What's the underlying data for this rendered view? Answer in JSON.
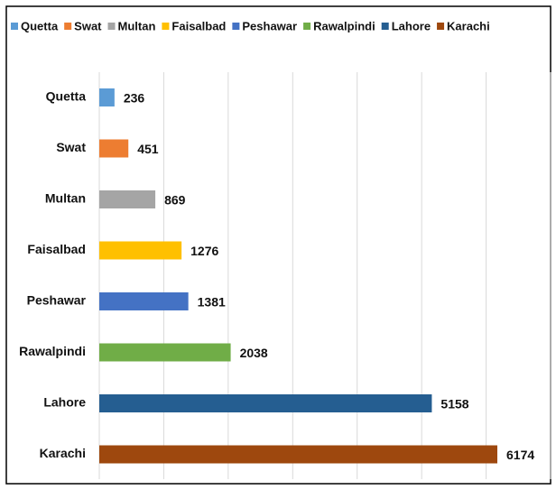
{
  "chart_data": {
    "type": "bar",
    "orientation": "horizontal",
    "categories": [
      "Quetta",
      "Swat",
      "Multan",
      "Faisalbad",
      "Peshawar",
      "Rawalpindi",
      "Lahore",
      "Karachi"
    ],
    "values": [
      236,
      451,
      869,
      1276,
      1381,
      2038,
      5158,
      6174
    ],
    "colors": [
      "#5B9BD5",
      "#ED7D31",
      "#A5A5A5",
      "#FFC000",
      "#4472C4",
      "#70AD47",
      "#255E91",
      "#9E480E"
    ],
    "xlim": [
      0,
      7000
    ],
    "xticks": [
      0,
      1000,
      2000,
      3000,
      4000,
      5000,
      6000,
      7000
    ],
    "grid": true,
    "legend": "top"
  }
}
